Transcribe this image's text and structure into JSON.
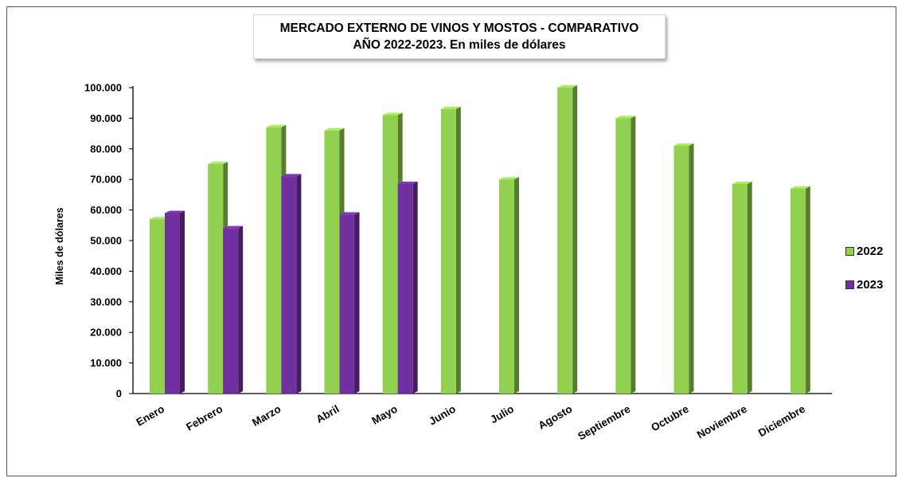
{
  "chart_data": {
    "type": "bar",
    "title_lines": [
      "MERCADO EXTERNO DE VINOS Y MOSTOS - COMPARATIVO",
      "AÑO 2022-2023. En miles de dólares"
    ],
    "ylabel": "Miles de dólares",
    "xlabel": "",
    "categories": [
      "Enero",
      "Febrero",
      "Marzo",
      "Abril",
      "Mayo",
      "Junio",
      "Julio",
      "Agosto",
      "Septiembre",
      "Octubre",
      "Noviembre",
      "Diciembre"
    ],
    "ylim": [
      0,
      100000
    ],
    "yticks": [
      "0",
      "10.000",
      "20.000",
      "30.000",
      "40.000",
      "50.000",
      "60.000",
      "70.000",
      "80.000",
      "90.000",
      "100.000"
    ],
    "ytick_values": [
      0,
      10000,
      20000,
      30000,
      40000,
      50000,
      60000,
      70000,
      80000,
      90000,
      100000
    ],
    "series": [
      {
        "name": "2022",
        "color": "#92d050",
        "values": [
          57000,
          75000,
          87000,
          86000,
          91000,
          93000,
          70000,
          100000,
          90000,
          81000,
          68500,
          67000
        ]
      },
      {
        "name": "2023",
        "color": "#7030a0",
        "values": [
          59000,
          54000,
          71000,
          58500,
          68500,
          null,
          null,
          null,
          null,
          null,
          null,
          null
        ]
      }
    ],
    "legend_position": "right",
    "grid": false
  }
}
